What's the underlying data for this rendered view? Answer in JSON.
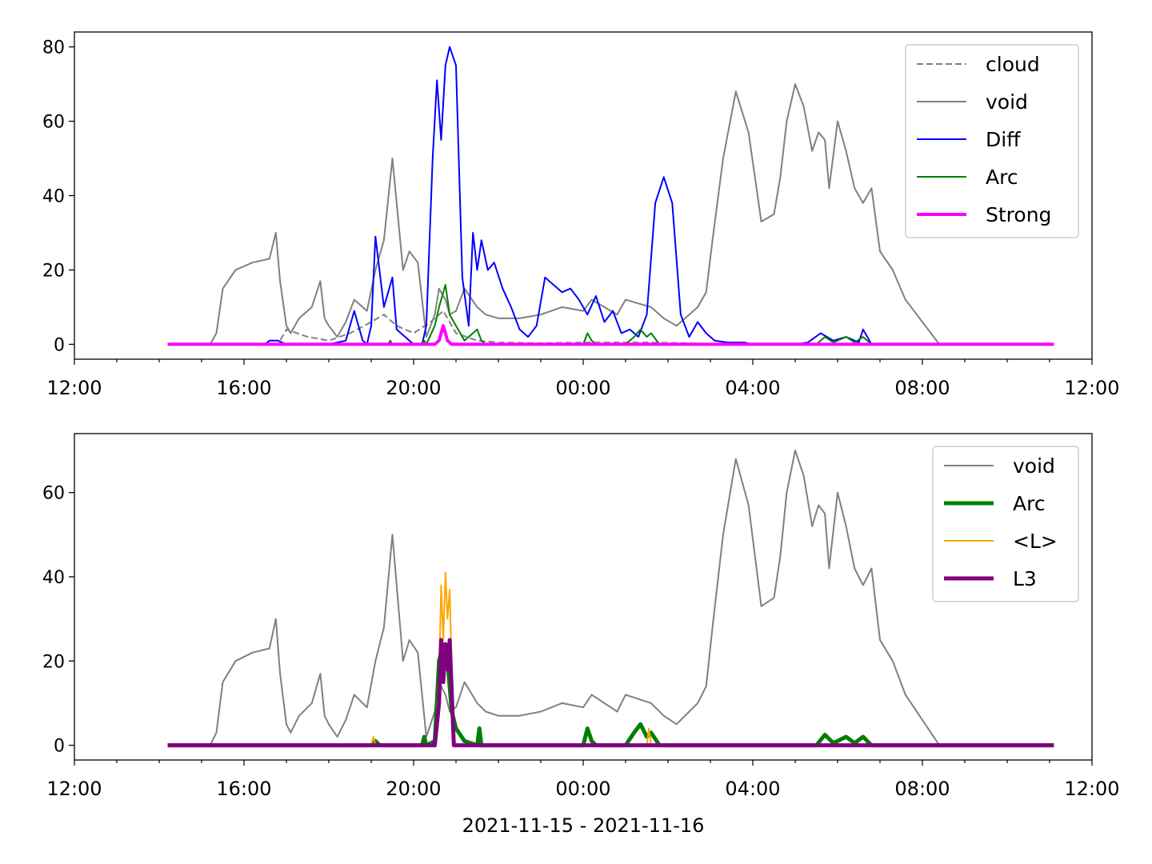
{
  "figure": {
    "xlabel": "2021-11-15 - 2021-11-16",
    "x_tick_labels": [
      "12:00",
      "16:00",
      "20:00",
      "00:00",
      "04:00",
      "08:00",
      "12:00"
    ]
  },
  "chart_data": [
    {
      "type": "line",
      "title": "",
      "xlabel": "",
      "ylabel": "",
      "x_unit": "hours since 2021-11-15 00:00",
      "xlim": [
        12,
        36
      ],
      "ylim": [
        -4,
        84
      ],
      "y_ticks": [
        0,
        20,
        40,
        60,
        80
      ],
      "grid": false,
      "legend_position": "upper right",
      "series": [
        {
          "name": "cloud",
          "color": "#808080",
          "style": "dashed",
          "width": 1,
          "x": [
            14.2,
            15.0,
            16.8,
            17.0,
            17.5,
            18.0,
            18.5,
            19.0,
            19.3,
            19.6,
            20.0,
            20.4,
            20.7,
            21.0,
            21.5,
            22.0,
            23.0,
            24.0,
            24.5,
            25.5,
            26.5,
            27.2,
            35.1
          ],
          "y": [
            0,
            0,
            0,
            4,
            2,
            1,
            3,
            6,
            8,
            5,
            3,
            6,
            9,
            3,
            1,
            0.5,
            0.3,
            0.5,
            0.5,
            0.5,
            0.3,
            0,
            0
          ]
        },
        {
          "name": "void",
          "color": "#808080",
          "style": "solid",
          "width": 1,
          "x": [
            14.2,
            15.2,
            15.35,
            15.5,
            15.8,
            16.2,
            16.6,
            16.75,
            16.85,
            17.0,
            17.1,
            17.3,
            17.6,
            17.8,
            17.9,
            18.0,
            18.2,
            18.4,
            18.6,
            18.9,
            19.1,
            19.3,
            19.5,
            19.6,
            19.75,
            19.9,
            20.1,
            20.2,
            20.3,
            20.5,
            20.6,
            20.75,
            20.85,
            21.0,
            21.2,
            21.5,
            21.7,
            22.0,
            22.5,
            23.0,
            23.5,
            24.0,
            24.2,
            24.5,
            24.8,
            25.0,
            25.3,
            25.6,
            25.9,
            26.2,
            26.5,
            26.7,
            26.9,
            27.05,
            27.3,
            27.6,
            27.9,
            28.2,
            28.5,
            28.65,
            28.8,
            29.0,
            29.2,
            29.4,
            29.55,
            29.7,
            29.8,
            30.0,
            30.2,
            30.4,
            30.6,
            30.8,
            31.0,
            31.3,
            31.6,
            32.0,
            32.4,
            35.1
          ],
          "y": [
            0,
            0,
            3,
            15,
            20,
            22,
            23,
            30,
            17,
            5,
            3,
            7,
            10,
            17,
            7,
            5,
            2,
            6,
            12,
            9,
            20,
            28,
            50,
            38,
            20,
            25,
            22,
            12,
            2,
            8,
            15,
            12,
            8,
            9,
            15,
            10,
            8,
            7,
            7,
            8,
            10,
            9,
            12,
            10,
            8,
            12,
            11,
            10,
            7,
            5,
            8,
            10,
            14,
            28,
            50,
            68,
            57,
            33,
            35,
            45,
            60,
            70,
            64,
            52,
            57,
            55,
            42,
            60,
            52,
            42,
            38,
            42,
            25,
            20,
            12,
            6,
            0,
            0
          ]
        },
        {
          "name": "Diff",
          "color": "#0000ff",
          "style": "solid",
          "width": 1,
          "x": [
            14.2,
            16.5,
            16.6,
            16.8,
            17.0,
            18.0,
            18.4,
            18.6,
            18.8,
            18.9,
            19.0,
            19.1,
            19.3,
            19.5,
            19.6,
            20.0,
            20.2,
            20.3,
            20.45,
            20.55,
            20.65,
            20.75,
            20.85,
            21.0,
            21.15,
            21.3,
            21.4,
            21.5,
            21.6,
            21.75,
            21.9,
            22.1,
            22.3,
            22.5,
            22.7,
            22.9,
            23.1,
            23.3,
            23.5,
            23.7,
            23.9,
            24.1,
            24.3,
            24.5,
            24.7,
            24.9,
            25.1,
            25.3,
            25.5,
            25.7,
            25.9,
            26.1,
            26.3,
            26.5,
            26.7,
            26.9,
            27.1,
            27.4,
            27.8,
            28.0,
            28.5,
            29.0,
            29.3,
            29.6,
            29.9,
            30.2,
            30.5,
            30.6,
            30.8,
            35.1
          ],
          "y": [
            0,
            0,
            1,
            1,
            0,
            0,
            1,
            9,
            1,
            0,
            5,
            29,
            10,
            18,
            4,
            0,
            0,
            5,
            50,
            71,
            55,
            75,
            80,
            75,
            18,
            5,
            30,
            20,
            28,
            20,
            22,
            15,
            10,
            4,
            2,
            5,
            18,
            16,
            14,
            15,
            12,
            8,
            13,
            6,
            9,
            3,
            4,
            2,
            8,
            38,
            45,
            38,
            8,
            2,
            6,
            3,
            1,
            0.5,
            0.5,
            0,
            0,
            0,
            0.5,
            3,
            1,
            2,
            0.5,
            4,
            0,
            0
          ]
        },
        {
          "name": "Arc",
          "color": "#008000",
          "style": "solid",
          "width": 1,
          "x": [
            14.2,
            19.4,
            19.45,
            19.5,
            20.2,
            20.25,
            20.3,
            20.5,
            20.6,
            20.75,
            20.85,
            21.0,
            21.2,
            21.5,
            21.6,
            21.7,
            22.0,
            24.0,
            24.1,
            24.2,
            24.3,
            25.0,
            25.2,
            25.35,
            25.5,
            25.6,
            25.8,
            27.0,
            28.0,
            29.5,
            29.7,
            29.9,
            30.2,
            30.4,
            30.6,
            30.8,
            35.1
          ],
          "y": [
            0,
            0,
            1,
            0,
            0,
            1,
            0,
            5,
            10,
            16,
            8,
            5,
            1,
            4,
            1,
            0,
            0,
            0,
            3,
            1,
            0,
            0,
            2,
            4,
            2,
            3,
            0,
            0,
            0,
            0,
            2,
            0.5,
            2,
            0.5,
            2,
            0,
            0
          ]
        },
        {
          "name": "Strong",
          "color": "#ff00ff",
          "style": "solid",
          "width": 2,
          "x": [
            14.2,
            20.5,
            20.6,
            20.7,
            20.8,
            20.9,
            35.1
          ],
          "y": [
            0,
            0,
            1,
            5,
            1,
            0,
            0
          ]
        }
      ]
    },
    {
      "type": "line",
      "title": "",
      "xlabel": "2021-11-15 - 2021-11-16",
      "ylabel": "",
      "x_unit": "hours since 2021-11-15 00:00",
      "xlim": [
        12,
        36
      ],
      "ylim": [
        -3.5,
        74
      ],
      "y_ticks": [
        0,
        20,
        40,
        60
      ],
      "grid": false,
      "legend_position": "upper right",
      "series": [
        {
          "name": "void",
          "color": "#808080",
          "style": "solid",
          "width": 1,
          "x": [
            14.2,
            15.2,
            15.35,
            15.5,
            15.8,
            16.2,
            16.6,
            16.75,
            16.85,
            17.0,
            17.1,
            17.3,
            17.6,
            17.8,
            17.9,
            18.0,
            18.2,
            18.4,
            18.6,
            18.9,
            19.1,
            19.3,
            19.5,
            19.6,
            19.75,
            19.9,
            20.1,
            20.2,
            20.3,
            20.5,
            20.6,
            20.75,
            20.85,
            21.0,
            21.2,
            21.5,
            21.7,
            22.0,
            22.5,
            23.0,
            23.5,
            24.0,
            24.2,
            24.5,
            24.8,
            25.0,
            25.3,
            25.6,
            25.9,
            26.2,
            26.5,
            26.7,
            26.9,
            27.05,
            27.3,
            27.6,
            27.9,
            28.2,
            28.5,
            28.65,
            28.8,
            29.0,
            29.2,
            29.4,
            29.55,
            29.7,
            29.8,
            30.0,
            30.2,
            30.4,
            30.6,
            30.8,
            31.0,
            31.3,
            31.6,
            32.0,
            32.4,
            35.1
          ],
          "y": [
            0,
            0,
            3,
            15,
            20,
            22,
            23,
            30,
            17,
            5,
            3,
            7,
            10,
            17,
            7,
            5,
            2,
            6,
            12,
            9,
            20,
            28,
            50,
            38,
            20,
            25,
            22,
            12,
            2,
            8,
            15,
            12,
            8,
            9,
            15,
            10,
            8,
            7,
            7,
            8,
            10,
            9,
            12,
            10,
            8,
            12,
            11,
            10,
            7,
            5,
            8,
            10,
            14,
            28,
            50,
            68,
            57,
            33,
            35,
            45,
            60,
            70,
            64,
            52,
            57,
            55,
            42,
            60,
            52,
            42,
            38,
            42,
            25,
            20,
            12,
            6,
            0,
            0
          ]
        },
        {
          "name": "Arc",
          "color": "#008000",
          "style": "solid",
          "width": 2.5,
          "x": [
            14.2,
            19.0,
            19.1,
            19.2,
            20.2,
            20.25,
            20.3,
            20.5,
            20.6,
            20.7,
            20.8,
            20.9,
            21.0,
            21.2,
            21.5,
            21.55,
            21.6,
            22.0,
            24.0,
            24.1,
            24.2,
            24.3,
            25.0,
            25.2,
            25.35,
            25.5,
            25.6,
            25.8,
            27.0,
            28.0,
            29.5,
            29.7,
            29.9,
            30.2,
            30.4,
            30.6,
            30.8,
            35.1
          ],
          "y": [
            0,
            0,
            1,
            0,
            0,
            2,
            0,
            1,
            20,
            24,
            20,
            8,
            4,
            1,
            0,
            4,
            0,
            0,
            0,
            4,
            1,
            0,
            0,
            3,
            5,
            2,
            3,
            0,
            0,
            0,
            0,
            2.5,
            0.5,
            2,
            0.5,
            2,
            0,
            0
          ]
        },
        {
          "name": "<L>",
          "color": "#ffa500",
          "style": "solid",
          "width": 1,
          "x": [
            14.2,
            19.0,
            19.05,
            19.1,
            20.5,
            20.6,
            20.65,
            20.7,
            20.75,
            20.8,
            20.85,
            20.95,
            25.5,
            25.55,
            25.6,
            35.1
          ],
          "y": [
            0,
            0,
            2,
            0,
            0,
            15,
            38,
            25,
            41,
            30,
            37,
            0,
            0,
            4,
            0,
            0
          ]
        },
        {
          "name": "L3",
          "color": "#800080",
          "style": "solid",
          "width": 2.5,
          "x": [
            14.2,
            20.5,
            20.6,
            20.65,
            20.7,
            20.75,
            20.8,
            20.85,
            20.95,
            35.1
          ],
          "y": [
            0,
            0,
            10,
            25,
            15,
            24,
            18,
            25,
            0,
            0
          ]
        }
      ]
    }
  ]
}
